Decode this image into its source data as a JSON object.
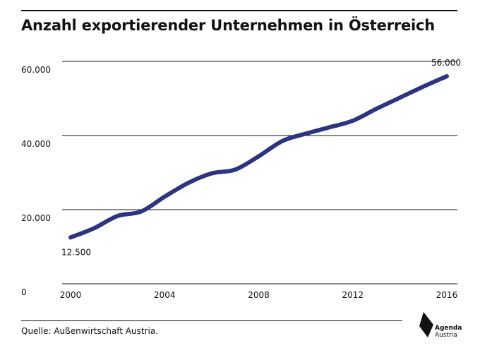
{
  "header": {
    "title": "Anzahl exportierender Unternehmen in Österreich"
  },
  "footer": {
    "source": "Quelle: Außenwirtschaft Austria.",
    "logo_line1": "Agenda",
    "logo_line2": "Austria"
  },
  "colors": {
    "line": "#2b3580",
    "text": "#111111",
    "grid": "#111111"
  },
  "chart_data": {
    "type": "line",
    "title": "Anzahl exportierender Unternehmen in Österreich",
    "xlabel": "",
    "ylabel": "",
    "xlim": [
      2000,
      2016
    ],
    "ylim": [
      0,
      60000
    ],
    "x_ticks": [
      2000,
      2004,
      2008,
      2012,
      2016
    ],
    "x_tick_labels": [
      "2000",
      "2004",
      "2008",
      "2012",
      "2016"
    ],
    "y_ticks": [
      0,
      20000,
      40000,
      60000
    ],
    "y_tick_labels": [
      "0",
      "20.000",
      "40.000",
      "60.000"
    ],
    "grid": true,
    "series": [
      {
        "x": [
          2000,
          2001,
          2002,
          2003,
          2004,
          2005,
          2006,
          2007,
          2008,
          2009,
          2010,
          2011,
          2012,
          2013,
          2014,
          2015,
          2016
        ],
        "values": [
          12500,
          15000,
          18300,
          19500,
          23500,
          27200,
          29800,
          30800,
          34400,
          38500,
          40500,
          42200,
          44000,
          47200,
          50200,
          53200,
          56000
        ]
      }
    ],
    "annotations": [
      {
        "x": 2000,
        "y": 12500,
        "text": "12.500"
      },
      {
        "x": 2016,
        "y": 56000,
        "text": "56.000"
      }
    ]
  }
}
